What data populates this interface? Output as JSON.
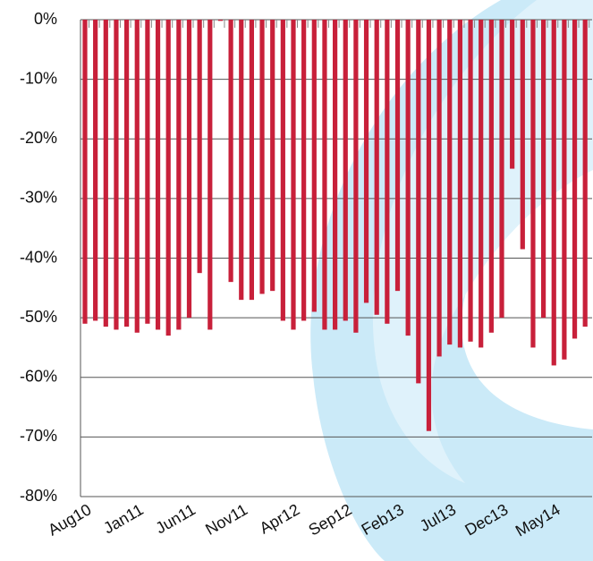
{
  "chart_data": {
    "type": "bar",
    "categories": [
      "Aug10",
      null,
      null,
      null,
      null,
      "Jan11",
      null,
      null,
      null,
      null,
      "Jun11",
      null,
      null,
      null,
      null,
      "Nov11",
      null,
      null,
      null,
      null,
      "Apr12",
      null,
      null,
      null,
      null,
      "Sep12",
      null,
      null,
      null,
      null,
      "Feb13",
      null,
      null,
      null,
      null,
      "Jul13",
      null,
      null,
      null,
      null,
      "Dec13",
      null,
      null,
      null,
      null,
      "May14",
      null,
      null,
      null
    ],
    "values": [
      -51,
      -50.5,
      -51.5,
      -52,
      -51.5,
      -52.5,
      -51,
      -52,
      -53,
      -52,
      -50,
      -42.5,
      -52,
      -0.2,
      -44,
      -47,
      -47,
      -46,
      -45.5,
      -50.5,
      -52,
      -50.5,
      -49,
      -52,
      -52,
      -50.5,
      -52.5,
      -47.5,
      -49.5,
      -51,
      -45.5,
      -53,
      -61,
      -69,
      -56.5,
      -54.5,
      -55,
      -54,
      -55,
      -52.5,
      -50,
      -25,
      -38.5,
      -55,
      -50,
      -58,
      -57,
      -53.5,
      -51.5
    ],
    "color": "#c8203a",
    "ylim": [
      -80,
      0
    ],
    "yticks": [
      {
        "value": 0,
        "label": "0%"
      },
      {
        "value": -10,
        "label": "-10%"
      },
      {
        "value": -20,
        "label": "-20%"
      },
      {
        "value": -30,
        "label": "-30%"
      },
      {
        "value": -40,
        "label": "-40%"
      },
      {
        "value": -50,
        "label": "-50%"
      },
      {
        "value": -60,
        "label": "-60%"
      },
      {
        "value": -70,
        "label": "-70%"
      },
      {
        "value": -80,
        "label": "-80%"
      }
    ],
    "grid": true
  }
}
